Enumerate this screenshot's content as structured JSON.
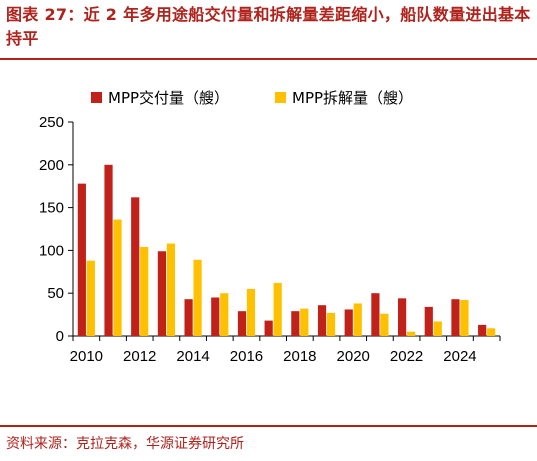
{
  "figure_title": "图表 27：近 2 年多用途船交付量和拆解量差距缩小，船队数量进出基本持平",
  "source": "资料来源：克拉克森，华源证券研究所",
  "chart_data": {
    "type": "bar",
    "categories": [
      "2010",
      "2011",
      "2012",
      "2013",
      "2014",
      "2015",
      "2016",
      "2017",
      "2018",
      "2019",
      "2020",
      "2021",
      "2022",
      "2023",
      "2024",
      "2025"
    ],
    "x_tick_labels": [
      "2010",
      "2012",
      "2014",
      "2016",
      "2018",
      "2020",
      "2022",
      "2024"
    ],
    "series": [
      {
        "name": "MPP交付量（艘）",
        "color": "#c0221a",
        "values": [
          178,
          200,
          162,
          99,
          43,
          45,
          29,
          18,
          29,
          36,
          31,
          50,
          44,
          34,
          43,
          13
        ]
      },
      {
        "name": "MPP拆解量（艘）",
        "color": "#ffc000",
        "values": [
          88,
          136,
          104,
          108,
          89,
          50,
          55,
          62,
          32,
          27,
          38,
          26,
          5,
          17,
          42,
          9
        ]
      }
    ],
    "ylim": [
      0,
      250
    ],
    "y_ticks": [
      0,
      50,
      100,
      150,
      200,
      250
    ],
    "legend_position": "top",
    "grid": false
  }
}
